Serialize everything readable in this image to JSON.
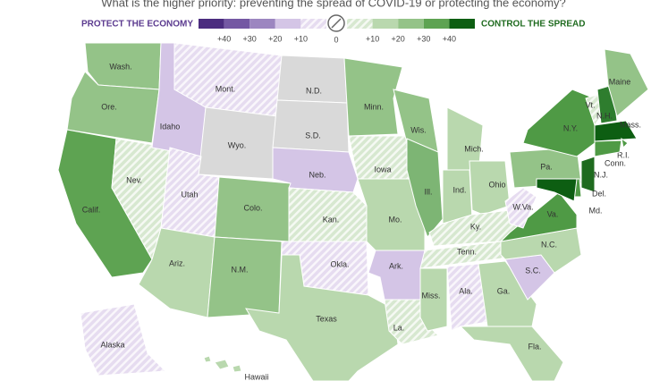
{
  "title": "What is the higher priority: preventing the spread of COVID-19 or protecting the economy?",
  "legend": {
    "left_label": "PROTECT THE ECONOMY",
    "right_label": "CONTROL THE SPREAD",
    "left_ticks": [
      "+40",
      "+30",
      "+20",
      "+10"
    ],
    "zero": "0",
    "right_ticks": [
      "+10",
      "+20",
      "+30",
      "+40"
    ],
    "left_colors": [
      "#4b2c7f",
      "#7458a3",
      "#9c86c0",
      "#d4c5e6",
      "#e6dcf0"
    ],
    "right_colors": [
      "#d7e8d0",
      "#b9d8ae",
      "#94c388",
      "#5ea352",
      "#0d5e12"
    ]
  },
  "states": [
    {
      "label": "Wash.",
      "color": "#94c388",
      "hatched": false
    },
    {
      "label": "Ore.",
      "color": "#94c388",
      "hatched": false
    },
    {
      "label": "Calif.",
      "color": "#5ea352",
      "hatched": false
    },
    {
      "label": "Nev.",
      "color": "#d7e8d0",
      "hatched": true
    },
    {
      "label": "Idaho",
      "color": "#d4c5e6",
      "hatched": false
    },
    {
      "label": "Mont.",
      "color": "#e6dcf0",
      "hatched": true
    },
    {
      "label": "Wyo.",
      "color": "#d9d9d9",
      "hatched": false
    },
    {
      "label": "Utah",
      "color": "#e6dcf0",
      "hatched": true
    },
    {
      "label": "Ariz.",
      "color": "#b9d8ae",
      "hatched": false
    },
    {
      "label": "Colo.",
      "color": "#94c388",
      "hatched": false
    },
    {
      "label": "N.M.",
      "color": "#94c388",
      "hatched": false
    },
    {
      "label": "N.D.",
      "color": "#d9d9d9",
      "hatched": false
    },
    {
      "label": "S.D.",
      "color": "#d9d9d9",
      "hatched": false
    },
    {
      "label": "Neb.",
      "color": "#d4c5e6",
      "hatched": false
    },
    {
      "label": "Kan.",
      "color": "#d7e8d0",
      "hatched": true
    },
    {
      "label": "Okla.",
      "color": "#e6dcf0",
      "hatched": true
    },
    {
      "label": "Texas",
      "color": "#b9d8ae",
      "hatched": false
    },
    {
      "label": "Minn.",
      "color": "#94c388",
      "hatched": false
    },
    {
      "label": "Iowa",
      "color": "#d7e8d0",
      "hatched": true
    },
    {
      "label": "Mo.",
      "color": "#b9d8ae",
      "hatched": false
    },
    {
      "label": "Ark.",
      "color": "#d4c5e6",
      "hatched": false
    },
    {
      "label": "La.",
      "color": "#d7e8d0",
      "hatched": true
    },
    {
      "label": "Wis.",
      "color": "#94c388",
      "hatched": false
    },
    {
      "label": "Ill.",
      "color": "#7db574",
      "hatched": false
    },
    {
      "label": "Mich.",
      "color": "#b9d8ae",
      "hatched": false
    },
    {
      "label": "Ind.",
      "color": "#b9d8ae",
      "hatched": false
    },
    {
      "label": "Ohio",
      "color": "#b9d8ae",
      "hatched": false
    },
    {
      "label": "Ky.",
      "color": "#d7e8d0",
      "hatched": true
    },
    {
      "label": "Tenn.",
      "color": "#d7e8d0",
      "hatched": true
    },
    {
      "label": "Miss.",
      "color": "#b9d8ae",
      "hatched": false
    },
    {
      "label": "Ala.",
      "color": "#e6dcf0",
      "hatched": true
    },
    {
      "label": "Ga.",
      "color": "#b9d8ae",
      "hatched": false
    },
    {
      "label": "Fla.",
      "color": "#b9d8ae",
      "hatched": false
    },
    {
      "label": "S.C.",
      "color": "#d4c5e6",
      "hatched": false
    },
    {
      "label": "N.C.",
      "color": "#b9d8ae",
      "hatched": false
    },
    {
      "label": "Va.",
      "color": "#4f9a45",
      "hatched": false
    },
    {
      "label": "W.Va.",
      "color": "#e6dcf0",
      "hatched": true
    },
    {
      "label": "Pa.",
      "color": "#94c388",
      "hatched": false
    },
    {
      "label": "N.Y.",
      "color": "#4f9a45",
      "hatched": false
    },
    {
      "label": "Vt.",
      "color": "#d7e8d0",
      "hatched": true
    },
    {
      "label": "N.H.",
      "color": "#2e7d2e",
      "hatched": false
    },
    {
      "label": "Maine",
      "color": "#94c388",
      "hatched": false
    },
    {
      "label": "Mass.",
      "color": "#0d5e12",
      "hatched": false
    },
    {
      "label": "R.I.",
      "color": "#4f9a45",
      "hatched": false
    },
    {
      "label": "Conn.",
      "color": "#4f9a45",
      "hatched": false
    },
    {
      "label": "N.J.",
      "color": "#1f6b1f",
      "hatched": false
    },
    {
      "label": "Del.",
      "color": "#4f9a45",
      "hatched": false
    },
    {
      "label": "Md.",
      "color": "#0d5e12",
      "hatched": false
    },
    {
      "label": "Alaska",
      "color": "#e6dcf0",
      "hatched": true
    },
    {
      "label": "Hawaii",
      "color": "#b9d8ae",
      "hatched": false
    }
  ]
}
